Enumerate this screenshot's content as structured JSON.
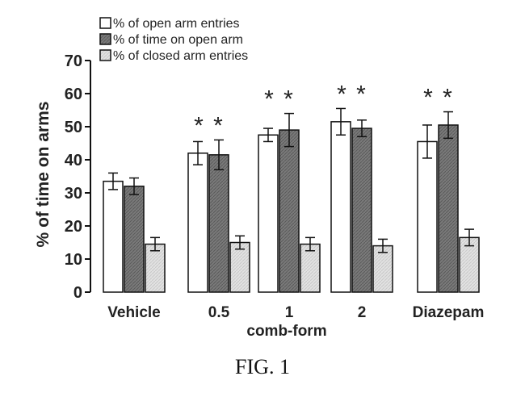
{
  "figure": {
    "caption": "FIG. 1"
  },
  "chart_data": {
    "type": "bar",
    "ylabel": "% of time on arms",
    "xlabel": "comb-form",
    "ylim": [
      0,
      70
    ],
    "yticks": [
      0,
      10,
      20,
      30,
      40,
      50,
      60,
      70
    ],
    "categories": [
      "Vehicle",
      "0.5",
      "1",
      "2",
      "Diazepam"
    ],
    "series": [
      {
        "name": "% of open arm entries",
        "values": [
          33.5,
          42,
          47.5,
          51.5,
          45.5
        ],
        "errors": [
          2.5,
          3.5,
          2,
          4,
          5
        ],
        "color": "#ffffff"
      },
      {
        "name": "% of time on open arm",
        "values": [
          32,
          41.5,
          49,
          49.5,
          50.5
        ],
        "errors": [
          2.5,
          4.5,
          5,
          2.5,
          4
        ],
        "color": "#7a7a7a"
      },
      {
        "name": "% of closed arm entries",
        "values": [
          14.5,
          15,
          14.5,
          14,
          16.5
        ],
        "errors": [
          2,
          2,
          2,
          2,
          2.5
        ],
        "color": "#e2e2e2"
      }
    ],
    "significance": [
      "",
      "* *",
      "* *",
      "* *",
      "* *"
    ],
    "legend": "top-left",
    "grid": false
  }
}
